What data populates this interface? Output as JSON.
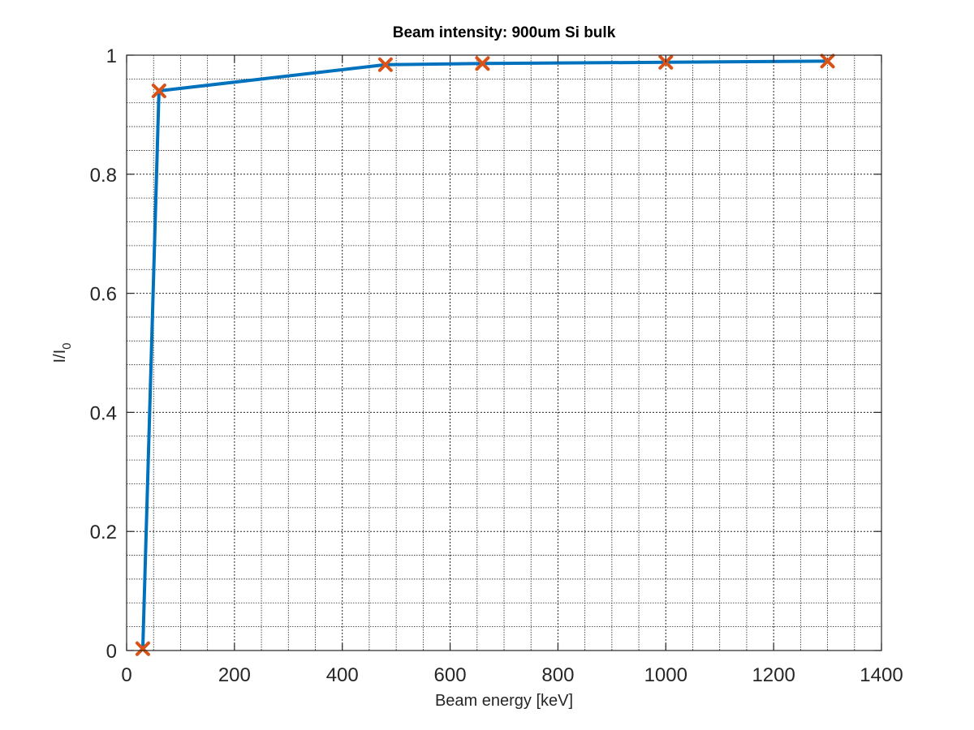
{
  "chart_data": {
    "type": "line",
    "title": "Beam intensity: 900um Si bulk",
    "xlabel": "Beam energy [keV]",
    "ylabel_main": "I/I",
    "ylabel_sub": "0",
    "xlim": [
      0,
      1400
    ],
    "ylim": [
      0,
      1
    ],
    "xticks": [
      0,
      200,
      400,
      600,
      800,
      1000,
      1200,
      1400
    ],
    "xtick_labels": [
      "0",
      "200",
      "400",
      "600",
      "800",
      "1000",
      "1200",
      "1400"
    ],
    "yticks": [
      0,
      0.2,
      0.4,
      0.6,
      0.8,
      1
    ],
    "ytick_labels": [
      "0",
      "0.2",
      "0.4",
      "0.6",
      "0.8",
      "1"
    ],
    "grid": true,
    "minor_grid": true,
    "series": [
      {
        "x": [
          30,
          60,
          480,
          660,
          1000,
          1300
        ],
        "y": [
          0.003,
          0.94,
          0.984,
          0.986,
          0.988,
          0.99
        ],
        "line_color": "#0072BD",
        "marker": "x",
        "marker_color": "#D95319"
      }
    ]
  }
}
